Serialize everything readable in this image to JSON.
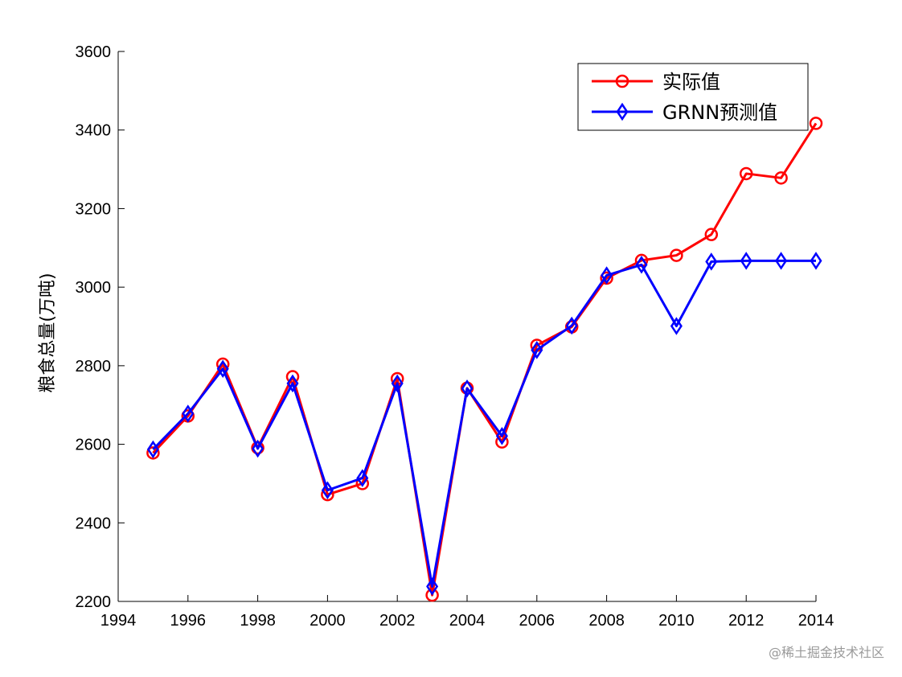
{
  "chart_data": {
    "type": "line",
    "title": "",
    "xlabel": "",
    "ylabel": "粮食总量(万吨)",
    "xlim": [
      1994,
      2014
    ],
    "ylim": [
      2200,
      3600
    ],
    "xticks": [
      1994,
      1996,
      1998,
      2000,
      2002,
      2004,
      2006,
      2008,
      2010,
      2012,
      2014
    ],
    "yticks": [
      2200,
      2400,
      2600,
      2800,
      3000,
      3200,
      3400,
      3600
    ],
    "grid": false,
    "legend_position": "top-right",
    "x": [
      1995,
      1996,
      1997,
      1998,
      1999,
      2000,
      2001,
      2002,
      2003,
      2004,
      2005,
      2006,
      2007,
      2008,
      2009,
      2010,
      2011,
      2012,
      2013,
      2014
    ],
    "series": [
      {
        "name": "实际值",
        "color": "#ff0000",
        "marker": "circle",
        "values": [
          2578,
          2672,
          2804,
          2591,
          2772,
          2472,
          2500,
          2767,
          2216,
          2743,
          2606,
          2852,
          2899,
          3023,
          3068,
          3081,
          3134,
          3289,
          3278,
          3417
        ]
      },
      {
        "name": "GRNN预测值",
        "color": "#0000ff",
        "marker": "diamond",
        "values": [
          2587,
          2678,
          2792,
          2589,
          2755,
          2483,
          2514,
          2755,
          2238,
          2742,
          2621,
          2840,
          2902,
          3030,
          3057,
          2901,
          3065,
          3067,
          3067,
          3067
        ]
      }
    ]
  },
  "watermark": "@稀土掘金技术社区"
}
